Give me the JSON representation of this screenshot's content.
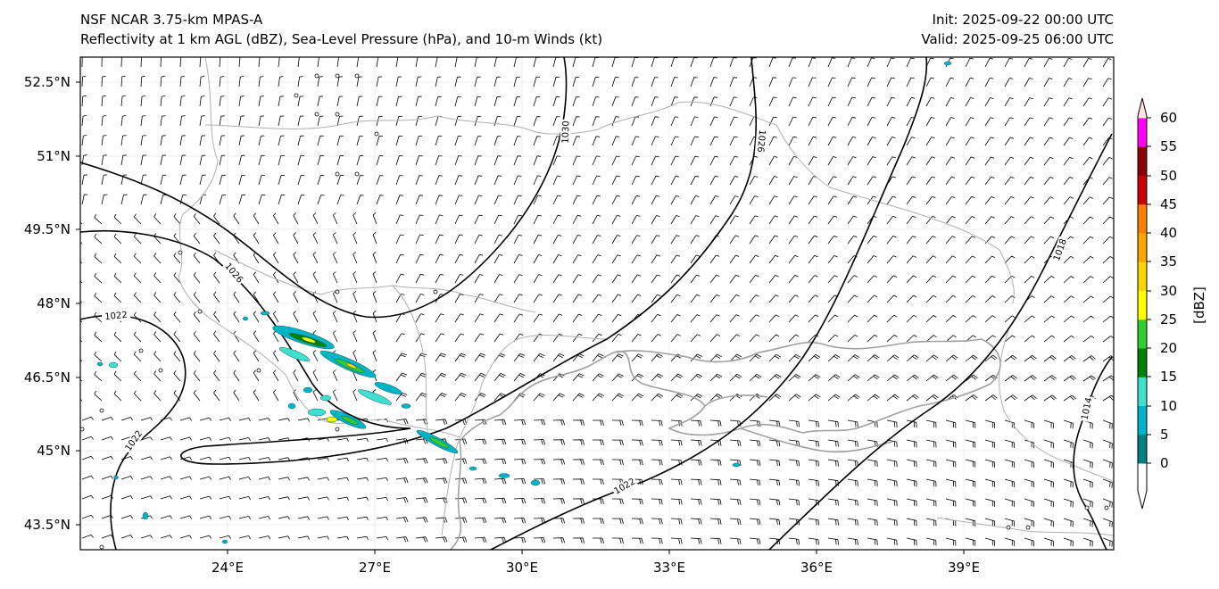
{
  "header": {
    "model": "NSF NCAR 3.75-km MPAS-A",
    "fields": "Reflectivity at 1 km AGL (dBZ), Sea-Level Pressure (hPa), and 10-m Winds (kt)",
    "init": "Init: 2025-09-22 00:00 UTC",
    "valid": "Valid: 2025-09-25 06:00 UTC"
  },
  "map": {
    "lon_range": [
      21,
      42.1
    ],
    "lat_range": [
      43,
      53
    ],
    "lon_ticks": [
      "24°E",
      "27°E",
      "30°E",
      "33°E",
      "36°E",
      "39°E"
    ],
    "lat_ticks": [
      "52.5°N",
      "51°N",
      "49.5°N",
      "48°N",
      "46.5°N",
      "45°N",
      "43.5°N"
    ],
    "isobar_labels": [
      "1030",
      "1026",
      "1026",
      "1022",
      "1022",
      "1022",
      "1018",
      "1014"
    ]
  },
  "colorbar": {
    "label": "[dBZ]",
    "ticks": [
      "60",
      "55",
      "50",
      "45",
      "40",
      "35",
      "30",
      "25",
      "20",
      "15",
      "10",
      "5",
      "0"
    ],
    "colors": [
      "#ffffff",
      "#008080",
      "#00b4c8",
      "#40e0d0",
      "#008000",
      "#32cd32",
      "#ffff00",
      "#ffd700",
      "#ffa500",
      "#ff7f00",
      "#c80000",
      "#8b0000",
      "#ff00ff",
      "#ffe4e1"
    ]
  }
}
